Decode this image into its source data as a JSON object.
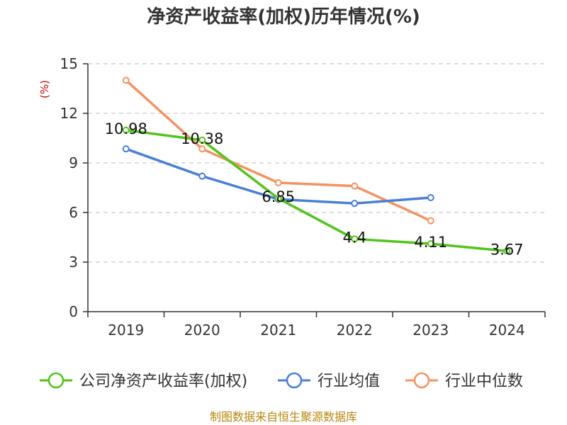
{
  "chart_data": {
    "type": "line",
    "title": "净资产收益率(加权)历年情况(%)",
    "ylabel": "(%)",
    "xlabel": "",
    "categories": [
      "2019",
      "2020",
      "2021",
      "2022",
      "2023",
      "2024"
    ],
    "ylim": [
      0,
      15
    ],
    "yticks": [
      0,
      3,
      6,
      9,
      12,
      15
    ],
    "grid": true,
    "legend_position": "bottom",
    "series": [
      {
        "name": "公司净资产收益率(加权)",
        "color": "#52c41a",
        "values": [
          10.98,
          10.38,
          6.85,
          4.4,
          4.11,
          3.67
        ],
        "labels": [
          "10.98",
          "10.38",
          "6.85",
          "4.4",
          "4.11",
          "3.67"
        ]
      },
      {
        "name": "行业均值",
        "color": "#4a7fd6",
        "values": [
          9.85,
          8.2,
          6.8,
          6.55,
          6.9,
          null
        ]
      },
      {
        "name": "行业中位数",
        "color": "#f59262",
        "values": [
          14.0,
          9.85,
          7.8,
          7.6,
          5.5,
          null
        ]
      }
    ]
  },
  "footer": {
    "source": "制图数据来自恒生聚源数据库"
  }
}
